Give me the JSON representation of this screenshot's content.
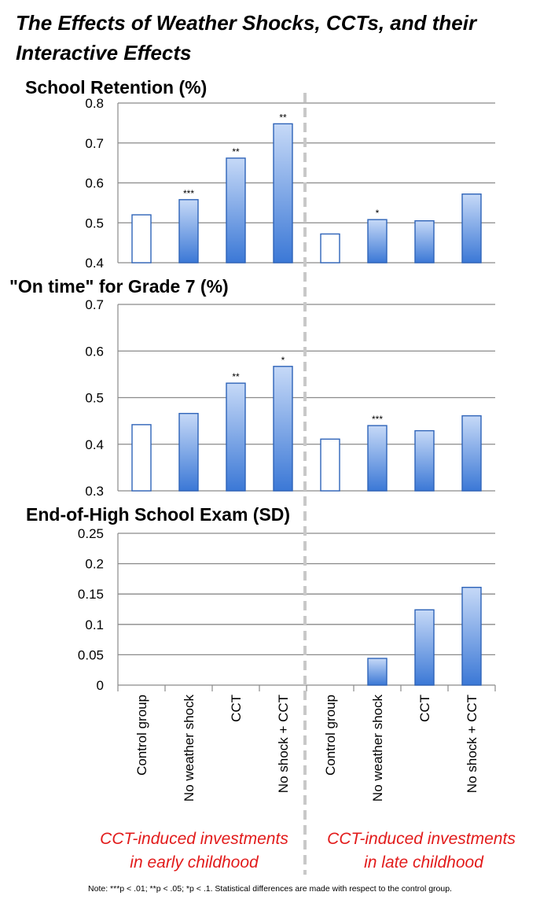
{
  "title": "The Effects of Weather Shocks, CCTs, and their Interactive Effects",
  "colors": {
    "bar_top": "#c6d9f7",
    "bar_bottom": "#3b78d6",
    "bar_edge": "#2e63b8",
    "control_fill": "#ffffff",
    "group_label": "#e21b1b",
    "grid": "#8a8a8a",
    "divider": "#c8c8c8"
  },
  "chart_data": [
    {
      "type": "bar",
      "title": "School Retention (%)",
      "categories": [
        "Control group",
        "No weather shock",
        "CCT",
        "No shock + CCT",
        "Control group",
        "No weather shock",
        "CCT",
        "No shock + CCT"
      ],
      "values": [
        0.52,
        0.558,
        0.662,
        0.748,
        0.472,
        0.508,
        0.505,
        0.572
      ],
      "significance": [
        "",
        "***",
        "**",
        "**",
        "",
        "*",
        "",
        ""
      ],
      "ylim": [
        0.4,
        0.8
      ],
      "yticks": [
        "0.4",
        "0.5",
        "0.6",
        "0.7",
        "0.8"
      ],
      "grid": true
    },
    {
      "type": "bar",
      "title": "\"On time\" for Grade 7 (%)",
      "categories": [
        "Control group",
        "No weather shock",
        "CCT",
        "No shock + CCT",
        "Control group",
        "No weather shock",
        "CCT",
        "No shock + CCT"
      ],
      "values": [
        0.442,
        0.466,
        0.531,
        0.567,
        0.411,
        0.44,
        0.429,
        0.461
      ],
      "significance": [
        "",
        "",
        "**",
        "*",
        "",
        "***",
        "",
        ""
      ],
      "ylim": [
        0.3,
        0.7
      ],
      "yticks": [
        "0.3",
        "0.4",
        "0.5",
        "0.6",
        "0.7"
      ],
      "grid": true
    },
    {
      "type": "bar",
      "title": "End-of-High School Exam (SD)",
      "categories": [
        "Control group",
        "No weather shock",
        "CCT",
        "No shock + CCT",
        "Control group",
        "No weather shock",
        "CCT",
        "No shock + CCT"
      ],
      "values": [
        0,
        0,
        0,
        0,
        0,
        0.044,
        0.124,
        0.161
      ],
      "significance": [
        "",
        "",
        "",
        "",
        "",
        "",
        "",
        ""
      ],
      "ylim": [
        0,
        0.25
      ],
      "yticks": [
        "0",
        "0.05",
        "0.1",
        "0.15",
        "0.2",
        "0.25"
      ],
      "grid": true
    }
  ],
  "category_labels": [
    "Control group",
    "No weather shock",
    "CCT",
    "No shock + CCT",
    "Control group",
    "No weather shock",
    "CCT",
    "No shock + CCT"
  ],
  "groups": [
    {
      "line1": "CCT-induced investments",
      "line2": "in early childhood"
    },
    {
      "line1": "CCT-induced investments",
      "line2": "in late childhood"
    }
  ],
  "note": "Note: ***p < .01; **p < .05; *p < .1.  Statistical differences are made with respect to the control group."
}
